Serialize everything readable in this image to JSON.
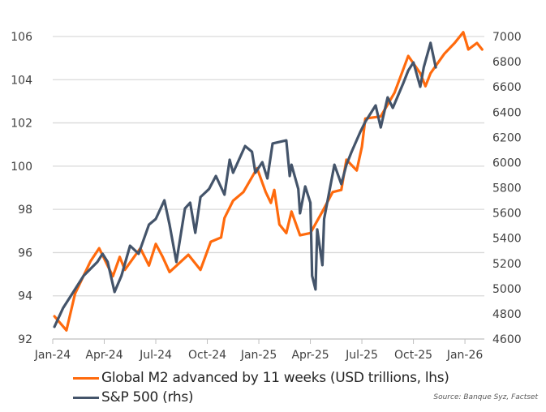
{
  "chart_data": {
    "type": "line",
    "title": "",
    "x_unit": "months since Jan-24",
    "x_ticks": [
      "Jan-24",
      "Apr-24",
      "Jul-24",
      "Oct-24",
      "Jan-25",
      "Apr-25",
      "Jul-25",
      "Oct-25",
      "Jan-26"
    ],
    "x_range": [
      0,
      25.1
    ],
    "y_left": {
      "range": [
        92,
        106
      ],
      "ticks": [
        "92",
        "94",
        "96",
        "98",
        "100",
        "102",
        "104",
        "106"
      ]
    },
    "y_right": {
      "range": [
        4600,
        7000
      ],
      "ticks": [
        "4600",
        "4800",
        "5000",
        "5200",
        "5400",
        "5600",
        "5800",
        "6000",
        "6200",
        "6400",
        "6600",
        "6800",
        "7000"
      ]
    },
    "grid": "horizontal",
    "legend_placement": "bottom-left",
    "series": [
      {
        "name": "Global M2 advanced by 11 weeks (USD trillions, lhs)",
        "axis": "left",
        "color": "#FF6A0D",
        "points": [
          [
            0.1,
            93.05
          ],
          [
            0.8,
            92.4
          ],
          [
            1.3,
            94.1
          ],
          [
            2.2,
            95.6
          ],
          [
            2.7,
            96.2
          ],
          [
            3.5,
            94.9
          ],
          [
            3.9,
            95.8
          ],
          [
            4.2,
            95.2
          ],
          [
            5.1,
            96.2
          ],
          [
            5.6,
            95.4
          ],
          [
            6.0,
            96.4
          ],
          [
            6.4,
            95.8
          ],
          [
            6.8,
            95.1
          ],
          [
            7.9,
            95.9
          ],
          [
            8.6,
            95.2
          ],
          [
            9.2,
            96.5
          ],
          [
            9.8,
            96.7
          ],
          [
            10.0,
            97.6
          ],
          [
            10.5,
            98.4
          ],
          [
            11.1,
            98.8
          ],
          [
            11.9,
            99.9
          ],
          [
            12.4,
            98.8
          ],
          [
            12.7,
            98.3
          ],
          [
            12.9,
            98.9
          ],
          [
            13.2,
            97.3
          ],
          [
            13.6,
            96.9
          ],
          [
            13.9,
            97.9
          ],
          [
            14.4,
            96.8
          ],
          [
            15.0,
            96.9
          ],
          [
            15.7,
            97.9
          ],
          [
            16.3,
            98.8
          ],
          [
            16.8,
            98.9
          ],
          [
            17.1,
            100.3
          ],
          [
            17.7,
            99.8
          ],
          [
            18.0,
            100.9
          ],
          [
            18.2,
            102.2
          ],
          [
            19.1,
            102.3
          ],
          [
            19.9,
            103.4
          ],
          [
            20.7,
            105.1
          ],
          [
            21.4,
            104.3
          ],
          [
            21.7,
            103.7
          ],
          [
            22.0,
            104.3
          ],
          [
            22.8,
            105.2
          ],
          [
            23.4,
            105.7
          ],
          [
            23.9,
            106.2
          ],
          [
            24.2,
            105.4
          ],
          [
            24.7,
            105.7
          ],
          [
            25.0,
            105.4
          ]
        ]
      },
      {
        "name": "S&P 500 (rhs)",
        "axis": "right",
        "color": "#44546A",
        "points": [
          [
            0.1,
            4697
          ],
          [
            0.6,
            4845
          ],
          [
            1.2,
            4973
          ],
          [
            1.8,
            5102
          ],
          [
            2.6,
            5211
          ],
          [
            2.9,
            5276
          ],
          [
            3.2,
            5211
          ],
          [
            3.6,
            4973
          ],
          [
            4.0,
            5102
          ],
          [
            4.5,
            5340
          ],
          [
            5.0,
            5276
          ],
          [
            5.6,
            5507
          ],
          [
            6.0,
            5552
          ],
          [
            6.5,
            5700
          ],
          [
            6.8,
            5507
          ],
          [
            7.2,
            5211
          ],
          [
            7.7,
            5636
          ],
          [
            8.0,
            5681
          ],
          [
            8.3,
            5443
          ],
          [
            8.6,
            5726
          ],
          [
            9.1,
            5790
          ],
          [
            9.5,
            5893
          ],
          [
            10.0,
            5745
          ],
          [
            10.3,
            6022
          ],
          [
            10.5,
            5919
          ],
          [
            11.2,
            6131
          ],
          [
            11.6,
            6086
          ],
          [
            11.8,
            5919
          ],
          [
            12.2,
            6003
          ],
          [
            12.5,
            5874
          ],
          [
            12.8,
            6151
          ],
          [
            13.6,
            6176
          ],
          [
            13.8,
            5893
          ],
          [
            13.9,
            5983
          ],
          [
            14.3,
            5790
          ],
          [
            14.4,
            5597
          ],
          [
            14.7,
            5810
          ],
          [
            15.0,
            5681
          ],
          [
            15.1,
            5102
          ],
          [
            15.3,
            4993
          ],
          [
            15.4,
            5469
          ],
          [
            15.7,
            5186
          ],
          [
            15.8,
            5552
          ],
          [
            16.4,
            5983
          ],
          [
            16.8,
            5829
          ],
          [
            17.1,
            5983
          ],
          [
            17.4,
            6086
          ],
          [
            17.9,
            6240
          ],
          [
            18.2,
            6324
          ],
          [
            18.8,
            6453
          ],
          [
            19.1,
            6279
          ],
          [
            19.5,
            6517
          ],
          [
            19.8,
            6434
          ],
          [
            20.4,
            6627
          ],
          [
            20.7,
            6730
          ],
          [
            21.0,
            6794
          ],
          [
            21.4,
            6601
          ],
          [
            21.6,
            6755
          ],
          [
            22.0,
            6949
          ],
          [
            22.3,
            6755
          ]
        ]
      }
    ],
    "legend": [
      "Global M2 advanced by 11 weeks (USD trillions, lhs)",
      "S&P 500 (rhs)"
    ],
    "source": "Source: Banque Syz, Factset"
  }
}
